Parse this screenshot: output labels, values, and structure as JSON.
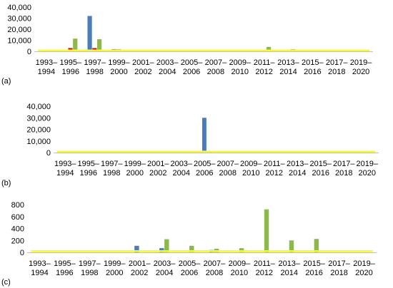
{
  "colors": {
    "blue": "#4a7bbd",
    "red": "#e3120b",
    "green": "#8db84a",
    "yellow": "#ffff00",
    "axis": "#bfbfbf"
  },
  "chart_data": [
    {
      "type": "bar",
      "panel_label": "(a)",
      "categories": [
        [
          "1993–",
          "1994"
        ],
        [
          "1995–",
          "1996"
        ],
        [
          "1997–",
          "1998"
        ],
        [
          "1999–",
          "2000"
        ],
        [
          "2001–",
          "2002"
        ],
        [
          "2003–",
          "2004"
        ],
        [
          "2005–",
          "2006"
        ],
        [
          "2007–",
          "2008"
        ],
        [
          "2009–",
          "2010"
        ],
        [
          "2011–",
          "2012"
        ],
        [
          "2013–",
          "2014"
        ],
        [
          "2015–",
          "2016"
        ],
        [
          "2017–",
          "2018"
        ],
        [
          "2019–",
          "2020"
        ]
      ],
      "ylim": [
        0,
        40000
      ],
      "yticks": [
        "0",
        "10,000",
        "20,000",
        "30,000",
        "40,000"
      ],
      "ytick_values": [
        0,
        10000,
        20000,
        30000,
        40000
      ],
      "grid": false,
      "series": [
        {
          "color": "#4a7bbd",
          "values": [
            0,
            300,
            32000,
            2000,
            0,
            0,
            0,
            0,
            0,
            0,
            0,
            0,
            0,
            0
          ]
        },
        {
          "color": "#e3120b",
          "values": [
            0,
            3000,
            3000,
            1800,
            0,
            0,
            0,
            0,
            0,
            0,
            0,
            0,
            0,
            0
          ]
        },
        {
          "color": "#8db84a",
          "values": [
            0,
            11500,
            11000,
            1500,
            0,
            0,
            0,
            0,
            0,
            4000,
            2000,
            0,
            0,
            0
          ]
        },
        {
          "color": "#ffff00",
          "values": [
            800,
            800,
            800,
            800,
            800,
            800,
            800,
            800,
            800,
            800,
            800,
            800,
            800,
            800
          ]
        }
      ]
    },
    {
      "type": "bar",
      "panel_label": "(b)",
      "categories": [
        [
          "1993–",
          "1994"
        ],
        [
          "1995–",
          "1996"
        ],
        [
          "1997–",
          "1998"
        ],
        [
          "1999–",
          "2000"
        ],
        [
          "2001–",
          "2002"
        ],
        [
          "2003–",
          "2004"
        ],
        [
          "2005–",
          "2006"
        ],
        [
          "2007–",
          "2008"
        ],
        [
          "2009–",
          "2010"
        ],
        [
          "2011–",
          "2012"
        ],
        [
          "2013–",
          "2014"
        ],
        [
          "2015–",
          "2016"
        ],
        [
          "2017–",
          "2018"
        ],
        [
          "2019–",
          "2020"
        ]
      ],
      "ylim": [
        0,
        40000
      ],
      "yticks": [
        "0",
        "10,000",
        "20,000",
        "30,000",
        "40,000"
      ],
      "ytick_values": [
        0,
        10000,
        20000,
        30000,
        40000
      ],
      "grid": false,
      "series": [
        {
          "color": "#4a7bbd",
          "values": [
            0,
            0,
            0,
            0,
            0,
            0,
            30000,
            0,
            0,
            0,
            0,
            0,
            0,
            0
          ]
        },
        {
          "color": "#ffff00",
          "values": [
            800,
            800,
            800,
            800,
            800,
            800,
            800,
            800,
            800,
            800,
            800,
            800,
            800,
            800
          ]
        }
      ]
    },
    {
      "type": "bar",
      "panel_label": "(c)",
      "categories": [
        [
          "1993–",
          "1994"
        ],
        [
          "1995–",
          "1996"
        ],
        [
          "1997–",
          "1998"
        ],
        [
          "1999–",
          "2000"
        ],
        [
          "2001–",
          "2002"
        ],
        [
          "2003–",
          "2004"
        ],
        [
          "2005–",
          "2006"
        ],
        [
          "2007–",
          "2008"
        ],
        [
          "2009–",
          "2010"
        ],
        [
          "2011–",
          "2012"
        ],
        [
          "2013–",
          "2014"
        ],
        [
          "2015–",
          "2016"
        ],
        [
          "2017–",
          "2018"
        ],
        [
          "2019–",
          "2020"
        ]
      ],
      "ylim": [
        0,
        800
      ],
      "yticks": [
        "0",
        "200",
        "400",
        "600",
        "800"
      ],
      "ytick_values": [
        0,
        200,
        400,
        600,
        800
      ],
      "grid": false,
      "series": [
        {
          "color": "#4a7bbd",
          "values": [
            0,
            0,
            0,
            0,
            110,
            70,
            0,
            40,
            0,
            0,
            0,
            0,
            0,
            0
          ]
        },
        {
          "color": "#8db84a",
          "values": [
            0,
            0,
            0,
            0,
            0,
            220,
            110,
            60,
            70,
            720,
            200,
            225,
            0,
            0
          ]
        },
        {
          "color": "#ffff00",
          "values": [
            20,
            20,
            20,
            20,
            20,
            20,
            20,
            20,
            20,
            20,
            20,
            20,
            20,
            20
          ]
        }
      ]
    }
  ]
}
